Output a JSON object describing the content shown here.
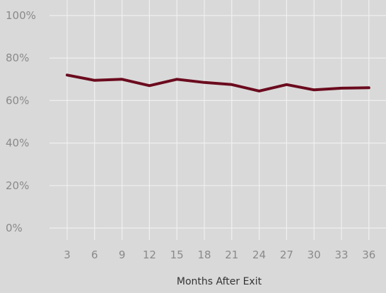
{
  "chart_data": {
    "type": "line",
    "title": "",
    "xlabel": "Months After Exit",
    "ylabel": "",
    "x": [
      3,
      6,
      9,
      12,
      15,
      18,
      21,
      24,
      27,
      30,
      33,
      36
    ],
    "x_tick_labels": [
      "3",
      "6",
      "9",
      "12",
      "15",
      "18",
      "21",
      "24",
      "27",
      "30",
      "33",
      "36"
    ],
    "ylim": [
      0,
      100
    ],
    "y_ticks": [
      0,
      20,
      40,
      60,
      80,
      100
    ],
    "y_tick_labels": [
      "0%",
      "20%",
      "40%",
      "60%",
      "80%",
      "100%"
    ],
    "series": [
      {
        "values": [
          72,
          69.5,
          70,
          67,
          70,
          68.5,
          67.5,
          64.5,
          67.5,
          65,
          65.8,
          66
        ]
      }
    ],
    "grid": true,
    "legend": "none",
    "colors": {
      "background": "#d9d9d9",
      "gridline": "#f0f0f0",
      "series": "#6b0b1e"
    }
  }
}
